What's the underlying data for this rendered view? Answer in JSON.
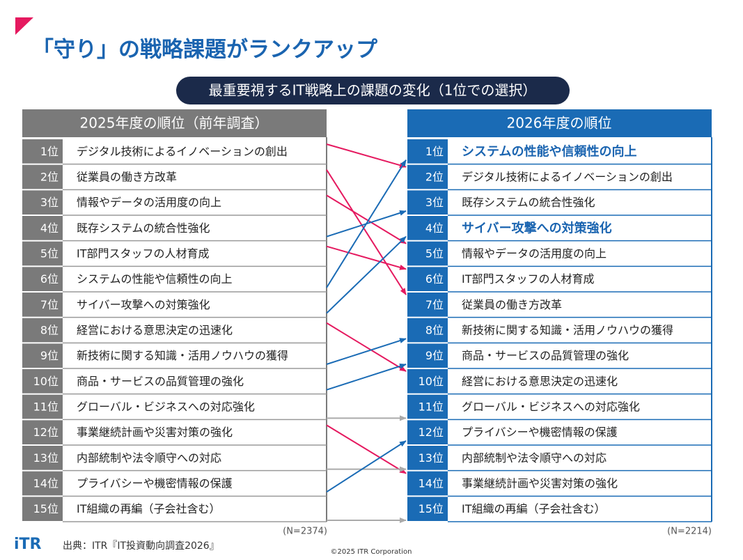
{
  "title": "「守り」の戦略課題がランクアップ",
  "subtitle": "最重要視するIT戦略上の課題の変化（1位での選択）",
  "left": {
    "header": "2025年度の順位（前年調査）",
    "ranks": [
      "1位",
      "2位",
      "3位",
      "4位",
      "5位",
      "6位",
      "7位",
      "8位",
      "9位",
      "10位",
      "11位",
      "12位",
      "13位",
      "14位",
      "15位"
    ],
    "items": [
      "デジタル技術によるイノベーションの創出",
      "従業員の働き方改革",
      "情報やデータの活用度の向上",
      "既存システムの統合性強化",
      "IT部門スタッフの人材育成",
      "システムの性能や信頼性の向上",
      "サイバー攻撃への対策強化",
      "経営における意思決定の迅速化",
      "新技術に関する知識・活用ノウハウの獲得",
      "商品・サービスの品質管理の強化",
      "グローバル・ビジネスへの対応強化",
      "事業継続計画や災害対策の強化",
      "内部統制や法令順守への対応",
      "プライバシーや機密情報の保護",
      "IT組織の再編（子会社含む）"
    ],
    "n": "(N=2374)"
  },
  "right": {
    "header": "2026年度の順位",
    "ranks": [
      "1位",
      "2位",
      "3位",
      "4位",
      "5位",
      "6位",
      "7位",
      "8位",
      "9位",
      "10位",
      "11位",
      "12位",
      "13位",
      "14位",
      "15位"
    ],
    "items": [
      "システムの性能や信頼性の向上",
      "デジタル技術によるイノベーションの創出",
      "既存システムの統合性強化",
      "サイバー攻撃への対策強化",
      "情報やデータの活用度の向上",
      "IT部門スタッフの人材育成",
      "従業員の働き方改革",
      "新技術に関する知識・活用ノウハウの獲得",
      "商品・サービスの品質管理の強化",
      "経営における意思決定の迅速化",
      "グローバル・ビジネスへの対応強化",
      "プライバシーや機密情報の保護",
      "内部統制や法令順守への対応",
      "事業継続計画や災害対策の強化",
      "IT組織の再編（子会社含む）"
    ],
    "n": "(N=2214)"
  },
  "logo": "iTR",
  "source": "出典：ITR『IT投資動向調査2026』",
  "copyright": "©2025 ITR Corporation"
}
